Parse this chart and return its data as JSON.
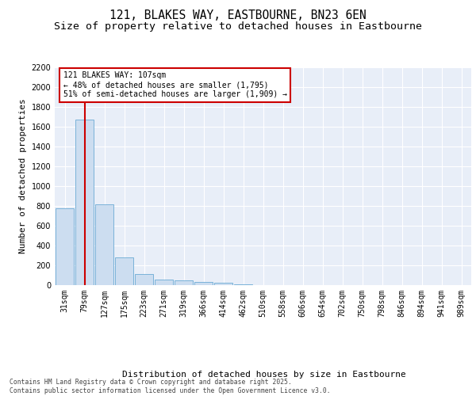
{
  "title1": "121, BLAKES WAY, EASTBOURNE, BN23 6EN",
  "title2": "Size of property relative to detached houses in Eastbourne",
  "xlabel": "Distribution of detached houses by size in Eastbourne",
  "ylabel": "Number of detached properties",
  "categories": [
    "31sqm",
    "79sqm",
    "127sqm",
    "175sqm",
    "223sqm",
    "271sqm",
    "319sqm",
    "366sqm",
    "414sqm",
    "462sqm",
    "510sqm",
    "558sqm",
    "606sqm",
    "654sqm",
    "702sqm",
    "750sqm",
    "798sqm",
    "846sqm",
    "894sqm",
    "941sqm",
    "989sqm"
  ],
  "values": [
    780,
    1670,
    820,
    280,
    115,
    55,
    45,
    35,
    22,
    8,
    0,
    0,
    0,
    0,
    0,
    0,
    0,
    0,
    0,
    0,
    0
  ],
  "bar_color": "#ccddf0",
  "bar_edge_color": "#6aaad4",
  "vline_x": 1,
  "vline_color": "#cc0000",
  "annotation_line1": "121 BLAKES WAY: 107sqm",
  "annotation_line2": "← 48% of detached houses are smaller (1,795)",
  "annotation_line3": "51% of semi-detached houses are larger (1,909) →",
  "annotation_box_facecolor": "#ffffff",
  "annotation_box_edgecolor": "#cc0000",
  "ylim_max": 2200,
  "yticks": [
    0,
    200,
    400,
    600,
    800,
    1000,
    1200,
    1400,
    1600,
    1800,
    2000,
    2200
  ],
  "bg_color": "#e8eef8",
  "grid_color": "#ffffff",
  "footer1": "Contains HM Land Registry data © Crown copyright and database right 2025.",
  "footer2": "Contains public sector information licensed under the Open Government Licence v3.0.",
  "title_fontsize": 10.5,
  "subtitle_fontsize": 9.5,
  "tick_fontsize": 7,
  "ylabel_fontsize": 8,
  "xlabel_fontsize": 8,
  "annotation_fontsize": 7,
  "footer_fontsize": 5.8
}
